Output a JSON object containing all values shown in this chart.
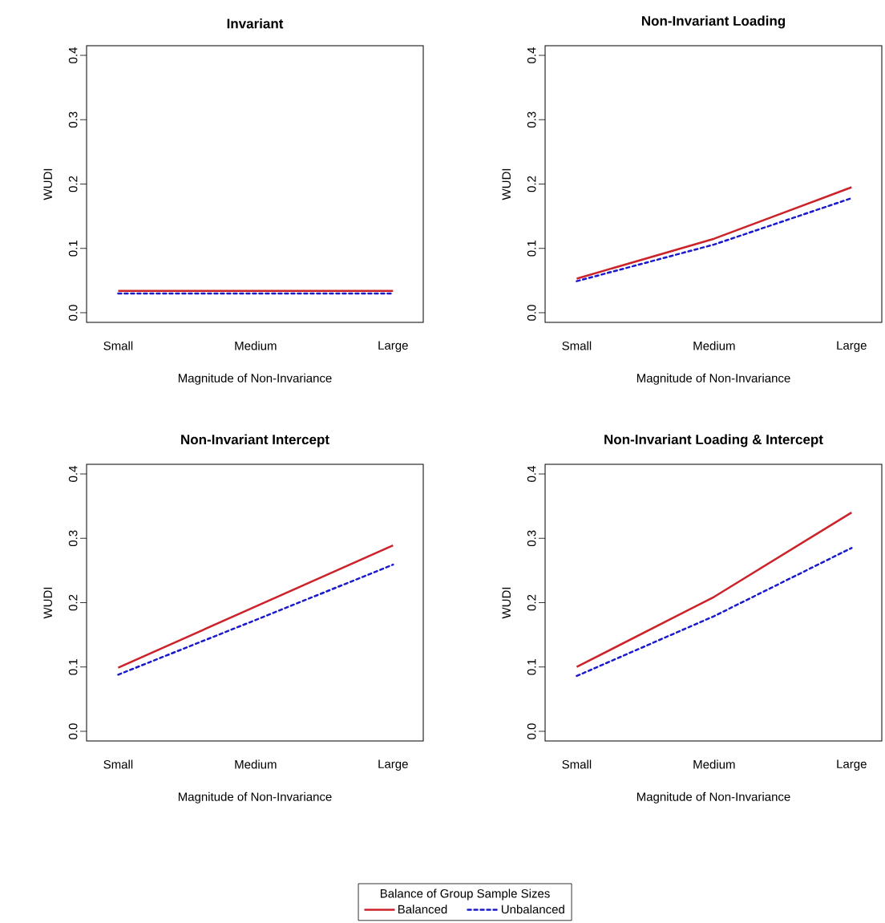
{
  "chart_data": [
    {
      "type": "line",
      "title": "Invariant",
      "xlabel": "Magnitude of Non-Invariance",
      "ylabel": "WUDI",
      "categories": [
        "Small",
        "Medium",
        "Large"
      ],
      "ylim": [
        -0.015,
        0.415
      ],
      "yticks": [
        {
          "value": 0,
          "label": "0.0"
        },
        {
          "value": 0.1,
          "label": "0.1"
        },
        {
          "value": 0.2,
          "label": "0.2"
        },
        {
          "value": 0.3,
          "label": "0.3"
        },
        {
          "value": 0.4,
          "label": "0.4"
        }
      ],
      "grid": false,
      "series": [
        {
          "color": "#cc2229",
          "line_style": "solid",
          "values": [
            0.034,
            0.034,
            0.034
          ]
        },
        {
          "color": "#1a1acc",
          "line_style": "dashed",
          "values": [
            0.03,
            0.03,
            0.03
          ]
        }
      ]
    },
    {
      "type": "line",
      "title": "Non-Invariant Loading",
      "xlabel": "Magnitude of Non-Invariance",
      "ylabel": "WUDI",
      "categories": [
        "Small",
        "Medium",
        "Large"
      ],
      "ylim": [
        -0.015,
        0.415
      ],
      "yticks": [
        {
          "value": 0,
          "label": "0.0"
        },
        {
          "value": 0.1,
          "label": "0.1"
        },
        {
          "value": 0.2,
          "label": "0.2"
        },
        {
          "value": 0.3,
          "label": "0.3"
        },
        {
          "value": 0.4,
          "label": "0.4"
        }
      ],
      "grid": false,
      "series": [
        {
          "color": "#cc2229",
          "line_style": "solid",
          "values": [
            0.053,
            0.115,
            0.195
          ]
        },
        {
          "color": "#1a1acc",
          "line_style": "dashed",
          "values": [
            0.049,
            0.106,
            0.178
          ]
        }
      ]
    },
    {
      "type": "line",
      "title": "Non-Invariant Intercept",
      "xlabel": "Magnitude of Non-Invariance",
      "ylabel": "WUDI",
      "categories": [
        "Small",
        "Medium",
        "Large"
      ],
      "ylim": [
        -0.015,
        0.415
      ],
      "yticks": [
        {
          "value": 0,
          "label": "0.0"
        },
        {
          "value": 0.1,
          "label": "0.1"
        },
        {
          "value": 0.2,
          "label": "0.2"
        },
        {
          "value": 0.3,
          "label": "0.3"
        },
        {
          "value": 0.4,
          "label": "0.4"
        }
      ],
      "grid": false,
      "series": [
        {
          "color": "#cc2229",
          "line_style": "solid",
          "values": [
            0.099,
            0.194,
            0.289
          ]
        },
        {
          "color": "#1a1acc",
          "line_style": "dashed",
          "values": [
            0.088,
            0.173,
            0.259
          ]
        }
      ]
    },
    {
      "type": "line",
      "title": "Non-Invariant Loading & Intercept",
      "xlabel": "Magnitude of Non-Invariance",
      "ylabel": "WUDI",
      "categories": [
        "Small",
        "Medium",
        "Large"
      ],
      "ylim": [
        -0.015,
        0.415
      ],
      "yticks": [
        {
          "value": 0,
          "label": "0.0"
        },
        {
          "value": 0.1,
          "label": "0.1"
        },
        {
          "value": 0.2,
          "label": "0.2"
        },
        {
          "value": 0.3,
          "label": "0.3"
        },
        {
          "value": 0.4,
          "label": "0.4"
        }
      ],
      "grid": false,
      "legend": "bottom",
      "legend_title": "Balance of Group Sample Sizes",
      "series": [
        {
          "name": "Balanced",
          "color": "#cc2229",
          "line_style": "solid",
          "values": [
            0.1,
            0.209,
            0.34
          ]
        },
        {
          "name": "Unbalanced",
          "color": "#1a1acc",
          "line_style": "dashed",
          "values": [
            0.086,
            0.179,
            0.285
          ]
        }
      ]
    }
  ]
}
